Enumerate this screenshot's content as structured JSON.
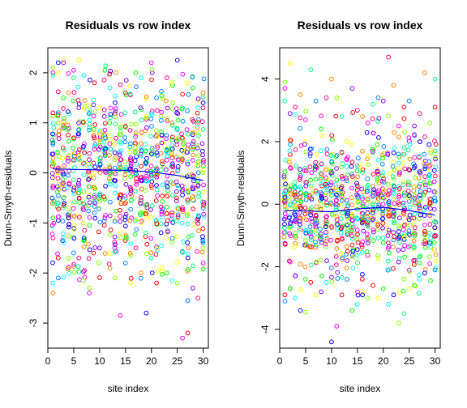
{
  "figure": {
    "colors": {
      "palette": [
        "#ff0000",
        "#ff8000",
        "#ffff00",
        "#80ff00",
        "#00ff00",
        "#00ff80",
        "#00ffff",
        "#0080ff",
        "#0000ff",
        "#8000ff",
        "#ff00ff",
        "#ff0080"
      ],
      "smooth_line": "#0000ff",
      "axes": "#000000"
    }
  },
  "chart_data": [
    {
      "type": "scatter",
      "title": "Residuals vs row index",
      "xlabel": "site index",
      "ylabel": "Dunn-Smyth-residuals",
      "xlim": [
        0,
        31
      ],
      "ylim": [
        -3.5,
        2.5
      ],
      "x_ticks": [
        0,
        5,
        10,
        15,
        20,
        25,
        30
      ],
      "y_ticks": [
        -3,
        -2,
        -1,
        0,
        1,
        2
      ],
      "sites": 30,
      "species_per_site": 30,
      "points": [
        [
          1,
          2.1
        ],
        [
          1,
          2.0
        ],
        [
          1,
          1.95
        ],
        [
          1,
          1.2
        ],
        [
          1,
          0.6
        ],
        [
          1,
          0.2
        ],
        [
          1,
          -0.3
        ],
        [
          1,
          -0.9
        ],
        [
          1,
          -1.3
        ],
        [
          1,
          -2.2
        ],
        [
          1,
          -2.4
        ],
        [
          2,
          2.2
        ],
        [
          2,
          1.0
        ],
        [
          2,
          0.1
        ],
        [
          2,
          -0.6
        ],
        [
          2,
          -1.7
        ],
        [
          2,
          -2.1
        ],
        [
          3,
          2.25
        ],
        [
          3,
          2.2
        ],
        [
          3,
          1.5
        ],
        [
          3,
          -0.2
        ],
        [
          3,
          -1.3
        ],
        [
          4,
          1.6
        ],
        [
          4,
          -0.9
        ],
        [
          4,
          -1.7
        ],
        [
          5,
          2.05
        ],
        [
          5,
          1.9
        ],
        [
          5,
          0.7
        ],
        [
          5,
          -1.6
        ],
        [
          6,
          2.25
        ],
        [
          6,
          1.3
        ],
        [
          6,
          -0.4
        ],
        [
          6,
          -1.7
        ],
        [
          7,
          1.95
        ],
        [
          7,
          0.2
        ],
        [
          7,
          -1.3
        ],
        [
          8,
          -2.3
        ],
        [
          8,
          -2.4
        ],
        [
          8,
          0.9
        ],
        [
          9,
          1.8
        ],
        [
          9,
          -0.8
        ],
        [
          10,
          1.3
        ],
        [
          10,
          -1.5
        ],
        [
          11,
          2.05
        ],
        [
          11,
          0.4
        ],
        [
          12,
          1.7
        ],
        [
          12,
          -1.9
        ],
        [
          13,
          1.4
        ],
        [
          13,
          -2.1
        ],
        [
          14,
          -2.85
        ],
        [
          14,
          0.9
        ],
        [
          15,
          1.6
        ],
        [
          15,
          -1.8
        ],
        [
          16,
          -2.2
        ],
        [
          16,
          0.3
        ],
        [
          17,
          2.0
        ],
        [
          17,
          -1.5
        ],
        [
          18,
          1.9
        ],
        [
          18,
          -2.0
        ],
        [
          19,
          -2.8
        ],
        [
          19,
          1.1
        ],
        [
          20,
          2.2
        ],
        [
          20,
          -1.7
        ],
        [
          21,
          -2.2
        ],
        [
          21,
          1.5
        ],
        [
          22,
          -1.9
        ],
        [
          22,
          0.6
        ],
        [
          23,
          -2.0
        ],
        [
          23,
          1.9
        ],
        [
          24,
          -2.15
        ],
        [
          24,
          1.0
        ],
        [
          25,
          2.25
        ],
        [
          25,
          -2.2
        ],
        [
          26,
          -3.3
        ],
        [
          26,
          1.3
        ],
        [
          27,
          -3.2
        ],
        [
          27,
          -2.55
        ],
        [
          27,
          1.8
        ],
        [
          28,
          -2.3
        ],
        [
          28,
          1.7
        ],
        [
          29,
          -2.5
        ],
        [
          29,
          1.3
        ],
        [
          30,
          1.6
        ],
        [
          30,
          1.4
        ],
        [
          30,
          -1.5
        ],
        [
          30,
          -1.8
        ]
      ],
      "smooth": [
        [
          1,
          0.08
        ],
        [
          5,
          0.07
        ],
        [
          10,
          0.06
        ],
        [
          15,
          0.05
        ],
        [
          20,
          0.02
        ],
        [
          25,
          -0.05
        ],
        [
          30,
          -0.15
        ]
      ]
    },
    {
      "type": "scatter",
      "title": "Residuals vs row index",
      "xlabel": "site index",
      "ylabel": "Dunn-Smyth-residuals",
      "xlim": [
        0,
        31
      ],
      "ylim": [
        -4.6,
        5.0
      ],
      "x_ticks": [
        0,
        5,
        10,
        15,
        20,
        25,
        30
      ],
      "y_ticks": [
        -4,
        -2,
        0,
        2,
        4
      ],
      "sites": 30,
      "species_per_site": 30,
      "points": [
        [
          1,
          3.9
        ],
        [
          1,
          3.7
        ],
        [
          1,
          3.3
        ],
        [
          1,
          -2.9
        ],
        [
          1,
          -3.1
        ],
        [
          2,
          4.5
        ],
        [
          2,
          2.9
        ],
        [
          2,
          -2.7
        ],
        [
          3,
          3.1
        ],
        [
          3,
          -3.0
        ],
        [
          4,
          3.5
        ],
        [
          4,
          -3.4
        ],
        [
          5,
          -3.45
        ],
        [
          5,
          2.7
        ],
        [
          6,
          4.3
        ],
        [
          6,
          -2.5
        ],
        [
          7,
          3.3
        ],
        [
          7,
          -2.9
        ],
        [
          8,
          -2.8
        ],
        [
          8,
          2.4
        ],
        [
          9,
          3.4
        ],
        [
          9,
          -2.5
        ],
        [
          10,
          4.0
        ],
        [
          10,
          -4.4
        ],
        [
          11,
          3.4
        ],
        [
          11,
          -3.9
        ],
        [
          12,
          2.8
        ],
        [
          12,
          -2.9
        ],
        [
          13,
          -2.4
        ],
        [
          13,
          2.0
        ],
        [
          14,
          3.7
        ],
        [
          14,
          -3.4
        ],
        [
          15,
          3.0
        ],
        [
          15,
          -3.2
        ],
        [
          16,
          2.8
        ],
        [
          16,
          -2.9
        ],
        [
          17,
          -3.0
        ],
        [
          17,
          2.6
        ],
        [
          18,
          3.2
        ],
        [
          18,
          -2.6
        ],
        [
          19,
          3.4
        ],
        [
          19,
          -3.0
        ],
        [
          20,
          3.3
        ],
        [
          20,
          -2.7
        ],
        [
          21,
          4.7
        ],
        [
          21,
          -3.2
        ],
        [
          22,
          3.8
        ],
        [
          22,
          -2.9
        ],
        [
          23,
          -3.8
        ],
        [
          23,
          2.5
        ],
        [
          24,
          -3.5
        ],
        [
          24,
          3.1
        ],
        [
          25,
          3.3
        ],
        [
          25,
          -2.7
        ],
        [
          26,
          2.5
        ],
        [
          26,
          -2.6
        ],
        [
          27,
          2.9
        ],
        [
          27,
          -2.4
        ],
        [
          28,
          4.2
        ],
        [
          28,
          -2.2
        ],
        [
          29,
          2.6
        ],
        [
          29,
          -1.9
        ],
        [
          30,
          4.0
        ],
        [
          30,
          3.1
        ],
        [
          30,
          -2.1
        ]
      ],
      "smooth": [
        [
          1,
          -0.2
        ],
        [
          5,
          -0.22
        ],
        [
          10,
          -0.24
        ],
        [
          12,
          -0.2
        ],
        [
          15,
          -0.15
        ],
        [
          20,
          -0.1
        ],
        [
          25,
          -0.2
        ],
        [
          30,
          -0.35
        ]
      ]
    }
  ]
}
